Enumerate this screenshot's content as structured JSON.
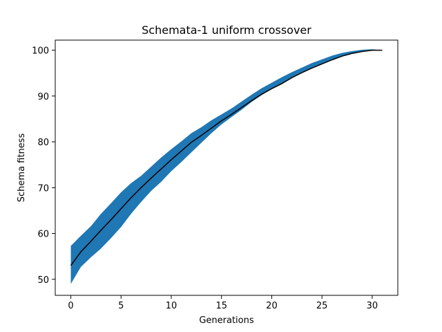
{
  "chart_data": {
    "type": "line",
    "title": "Schemata-1 uniform crossover",
    "xlabel": "Generations",
    "ylabel": "Schema fitness",
    "xlim": [
      -1.55,
      32.55
    ],
    "ylim": [
      46.5,
      102.2
    ],
    "xticks": [
      0,
      5,
      10,
      15,
      20,
      25,
      30
    ],
    "yticks": [
      50,
      60,
      70,
      80,
      90,
      100
    ],
    "grid": false,
    "legend": "none",
    "x": [
      0,
      1,
      2,
      3,
      4,
      5,
      6,
      7,
      8,
      9,
      10,
      11,
      12,
      13,
      14,
      15,
      16,
      17,
      18,
      19,
      20,
      21,
      22,
      23,
      24,
      25,
      26,
      27,
      28,
      29,
      30,
      31
    ],
    "series": [
      {
        "type": "line",
        "color": "#000000",
        "values": [
          53.0,
          56.0,
          58.3,
          60.7,
          63.0,
          65.4,
          67.8,
          70.0,
          72.1,
          74.1,
          76.1,
          78.0,
          79.9,
          81.4,
          83.0,
          84.6,
          86.0,
          87.5,
          89.0,
          90.4,
          91.6,
          92.7,
          94.0,
          95.1,
          96.1,
          97.0,
          97.9,
          98.7,
          99.3,
          99.7,
          100.0,
          100.0
        ]
      },
      {
        "type": "band",
        "color": "#1f77b4",
        "lower": [
          49.0,
          52.7,
          54.8,
          56.7,
          59.0,
          61.4,
          64.3,
          66.9,
          69.3,
          71.3,
          73.6,
          75.6,
          77.7,
          79.8,
          81.9,
          83.8,
          85.4,
          87.0,
          88.7,
          90.2,
          91.5,
          92.8,
          94.1,
          95.2,
          96.1,
          97.0,
          97.9,
          98.7,
          99.3,
          99.7,
          100.0,
          100.0
        ],
        "upper": [
          57.3,
          59.5,
          61.6,
          64.3,
          66.6,
          69.0,
          71.0,
          72.6,
          74.6,
          76.6,
          78.4,
          80.1,
          81.9,
          83.2,
          84.7,
          86.0,
          87.3,
          88.8,
          90.3,
          91.7,
          92.9,
          94.1,
          95.2,
          96.2,
          97.2,
          98.0,
          98.8,
          99.4,
          99.8,
          100.1,
          100.2,
          100.0
        ]
      }
    ]
  }
}
